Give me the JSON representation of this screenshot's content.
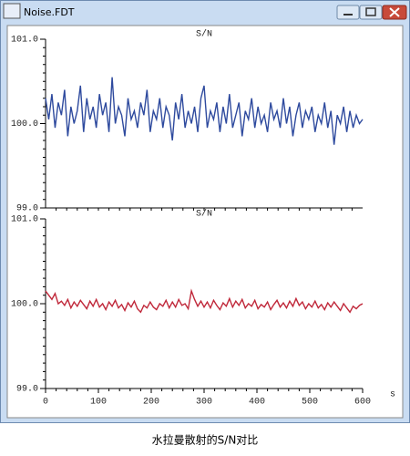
{
  "window": {
    "title": "Noise.FDT"
  },
  "chart_data": [
    {
      "type": "line",
      "title": "S/N",
      "x": [
        0,
        6,
        12,
        18,
        24,
        30,
        36,
        42,
        48,
        54,
        60,
        66,
        72,
        78,
        84,
        90,
        96,
        102,
        108,
        114,
        120,
        126,
        132,
        138,
        144,
        150,
        156,
        162,
        168,
        174,
        180,
        186,
        192,
        198,
        204,
        210,
        216,
        222,
        228,
        234,
        240,
        246,
        252,
        258,
        264,
        270,
        276,
        282,
        288,
        294,
        300,
        306,
        312,
        318,
        324,
        330,
        336,
        342,
        348,
        354,
        360,
        366,
        372,
        378,
        384,
        390,
        396,
        402,
        408,
        414,
        420,
        426,
        432,
        438,
        444,
        450,
        456,
        462,
        468,
        474,
        480,
        486,
        492,
        498,
        504,
        510,
        516,
        522,
        528,
        534,
        540,
        546,
        552,
        558,
        564,
        570,
        576,
        582,
        588,
        594,
        600
      ],
      "series": [
        {
          "name": "S/N",
          "color": "#2e4a9e",
          "values": [
            100.3,
            100.05,
            100.35,
            99.95,
            100.25,
            100.1,
            100.4,
            99.85,
            100.2,
            100.0,
            100.15,
            100.45,
            99.9,
            100.3,
            100.05,
            100.2,
            99.95,
            100.35,
            100.1,
            100.25,
            99.9,
            100.55,
            100.0,
            100.2,
            100.1,
            99.85,
            100.3,
            100.05,
            100.15,
            99.95,
            100.25,
            100.1,
            100.4,
            99.9,
            100.15,
            100.05,
            100.3,
            99.95,
            100.2,
            100.1,
            99.8,
            100.25,
            100.05,
            100.35,
            99.95,
            100.15,
            100.0,
            100.2,
            99.9,
            100.3,
            100.45,
            99.95,
            100.15,
            100.05,
            100.25,
            99.9,
            100.2,
            100.0,
            100.35,
            99.95,
            100.1,
            100.25,
            99.85,
            100.15,
            100.05,
            100.3,
            99.95,
            100.2,
            100.0,
            100.1,
            99.9,
            100.25,
            100.05,
            100.15,
            99.95,
            100.3,
            100.0,
            100.2,
            99.85,
            100.1,
            100.25,
            99.95,
            100.15,
            100.05,
            100.2,
            99.9,
            100.1,
            100.0,
            100.25,
            99.95,
            100.15,
            99.75,
            100.1,
            100.0,
            100.2,
            99.9,
            100.15,
            99.95,
            100.1,
            100.0,
            100.05
          ]
        }
      ],
      "xlim": [
        0,
        600
      ],
      "ylim": [
        99,
        101
      ],
      "yticks": [
        {
          "value": 101,
          "label": "101.0"
        },
        {
          "value": 100,
          "label": "100.0"
        },
        {
          "value": 99,
          "label": "99.0"
        }
      ]
    },
    {
      "type": "line",
      "title": "S/N",
      "x_label": "s",
      "x": [
        0,
        6,
        12,
        18,
        24,
        30,
        36,
        42,
        48,
        54,
        60,
        66,
        72,
        78,
        84,
        90,
        96,
        102,
        108,
        114,
        120,
        126,
        132,
        138,
        144,
        150,
        156,
        162,
        168,
        174,
        180,
        186,
        192,
        198,
        204,
        210,
        216,
        222,
        228,
        234,
        240,
        246,
        252,
        258,
        264,
        270,
        276,
        282,
        288,
        294,
        300,
        306,
        312,
        318,
        324,
        330,
        336,
        342,
        348,
        354,
        360,
        366,
        372,
        378,
        384,
        390,
        396,
        402,
        408,
        414,
        420,
        426,
        432,
        438,
        444,
        450,
        456,
        462,
        468,
        474,
        480,
        486,
        492,
        498,
        504,
        510,
        516,
        522,
        528,
        534,
        540,
        546,
        552,
        558,
        564,
        570,
        576,
        582,
        588,
        594,
        600
      ],
      "series": [
        {
          "name": "S/N",
          "color": "#c0283a",
          "values": [
            100.15,
            100.1,
            100.05,
            100.12,
            100.0,
            100.03,
            99.98,
            100.05,
            99.95,
            100.02,
            99.97,
            100.04,
            99.99,
            99.94,
            100.03,
            99.97,
            100.05,
            99.96,
            100.0,
            99.93,
            100.02,
            99.97,
            100.04,
            99.95,
            99.99,
            99.92,
            100.01,
            99.96,
            100.03,
            99.94,
            99.9,
            99.98,
            99.95,
            100.02,
            99.96,
            99.93,
            100.0,
            99.97,
            100.04,
            99.95,
            100.02,
            99.96,
            100.05,
            99.98,
            100.0,
            99.94,
            100.15,
            100.05,
            99.97,
            100.03,
            99.96,
            100.02,
            99.95,
            100.04,
            99.98,
            99.93,
            100.01,
            99.97,
            100.06,
            99.96,
            100.03,
            99.98,
            100.05,
            99.95,
            100.0,
            99.97,
            100.04,
            99.94,
            99.99,
            99.96,
            100.02,
            99.93,
            99.99,
            100.04,
            99.96,
            100.01,
            99.95,
            100.03,
            99.97,
            100.06,
            99.98,
            100.02,
            99.94,
            100.0,
            99.96,
            100.03,
            99.95,
            99.99,
            99.93,
            100.01,
            99.96,
            100.02,
            99.97,
            99.92,
            100.0,
            99.95,
            99.9,
            99.97,
            99.94,
            99.98,
            100.0
          ]
        }
      ],
      "xlim": [
        0,
        600
      ],
      "xticks": [
        0,
        100,
        200,
        300,
        400,
        500,
        600
      ],
      "ylim": [
        99,
        101
      ],
      "yticks": [
        {
          "value": 101,
          "label": "101.0"
        },
        {
          "value": 100,
          "label": "100.0"
        },
        {
          "value": 99,
          "label": "99.0"
        }
      ]
    }
  ],
  "caption": "水拉曼散射的S/N对比"
}
